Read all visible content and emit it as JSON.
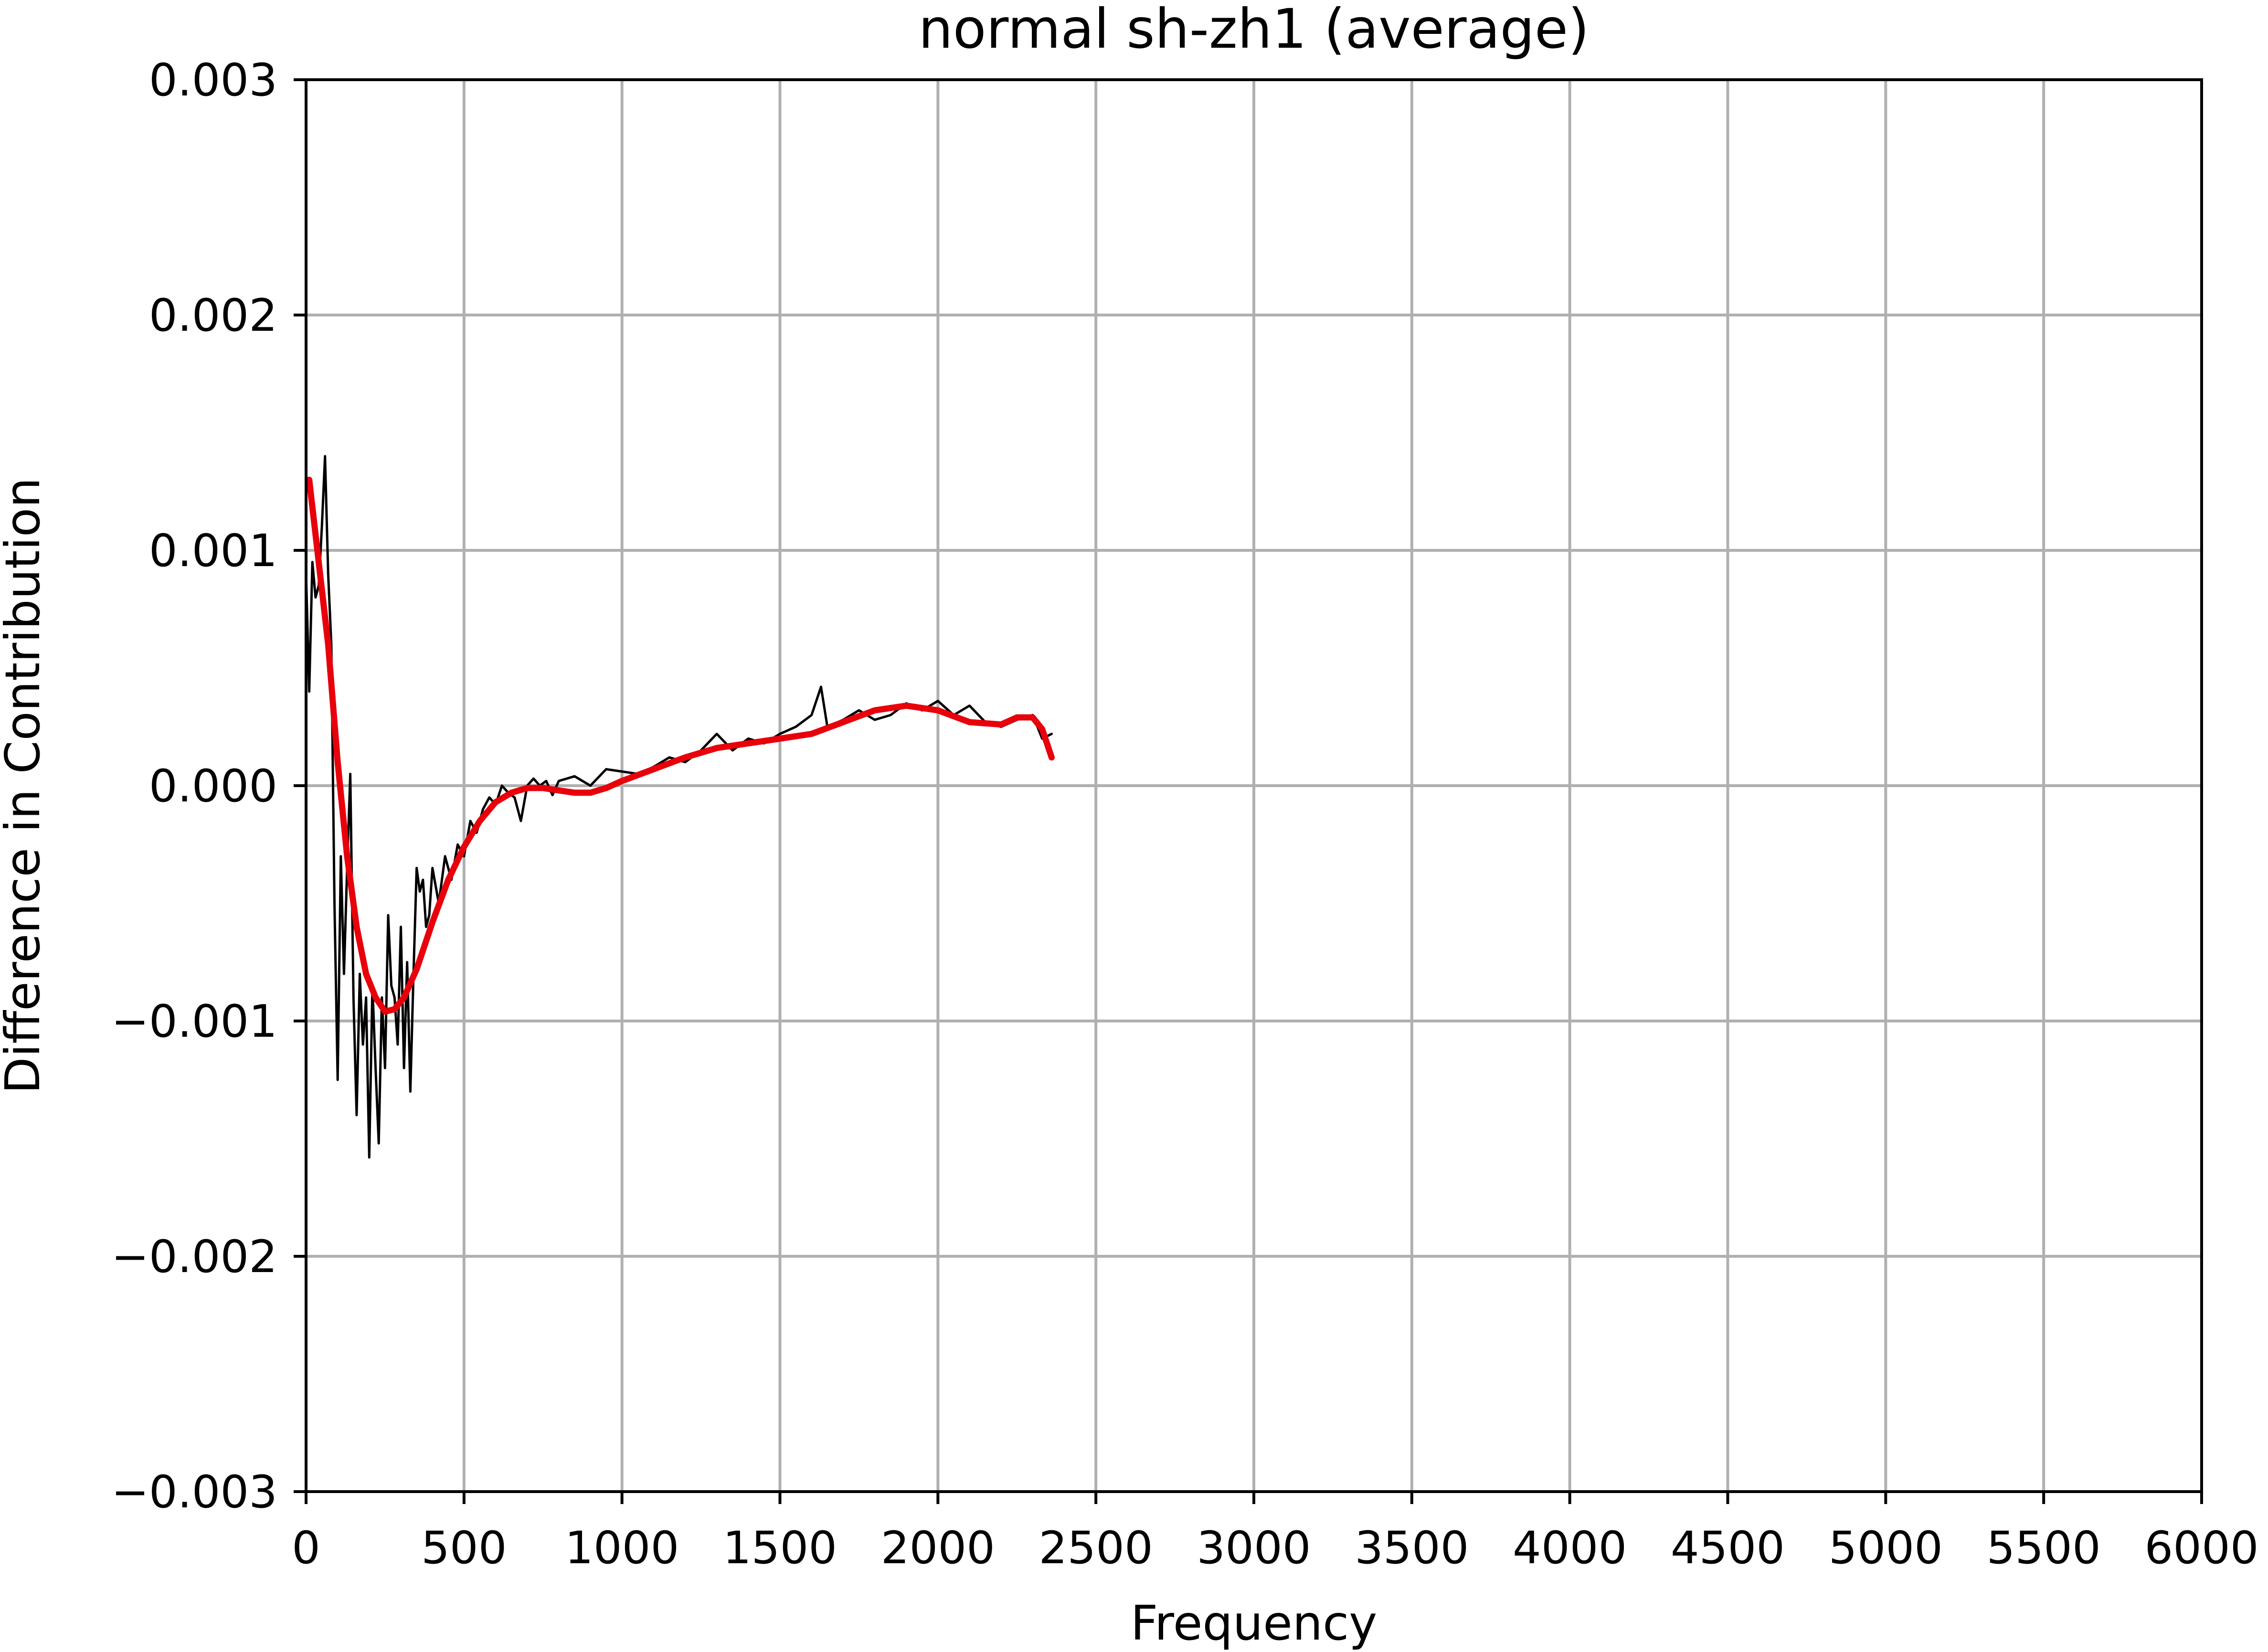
{
  "chart_data": {
    "type": "line",
    "title": "normal sh-zh1 (average)",
    "xlabel": "Frequency",
    "ylabel": "Difference in Contribution",
    "xlim": [
      0,
      6000
    ],
    "ylim": [
      -0.003,
      0.003
    ],
    "xticks": [
      0,
      500,
      1000,
      1500,
      2000,
      2500,
      3000,
      3500,
      4000,
      4500,
      5000,
      5500,
      6000
    ],
    "xtick_labels": [
      "0",
      "500",
      "1000",
      "1500",
      "2000",
      "2500",
      "3000",
      "3500",
      "4000",
      "4500",
      "5000",
      "5500",
      "6000"
    ],
    "yticks": [
      -0.003,
      -0.002,
      -0.001,
      0.0,
      0.001,
      0.002,
      0.003
    ],
    "ytick_labels": [
      "−0.003",
      "−0.002",
      "−0.001",
      "0.000",
      "0.001",
      "0.002",
      "0.003"
    ],
    "grid": true,
    "colors": {
      "raw": "#000000",
      "smooth": "#e8000b",
      "grid": "#b0b0b0"
    },
    "series": [
      {
        "style": "raw",
        "x": [
          0,
          10,
          20,
          30,
          40,
          50,
          60,
          70,
          80,
          90,
          100,
          110,
          120,
          130,
          140,
          150,
          160,
          170,
          180,
          190,
          200,
          210,
          220,
          230,
          240,
          250,
          260,
          270,
          280,
          290,
          300,
          310,
          320,
          330,
          340,
          350,
          360,
          370,
          380,
          390,
          400,
          420,
          440,
          460,
          480,
          500,
          520,
          540,
          560,
          580,
          600,
          620,
          640,
          660,
          680,
          700,
          720,
          740,
          760,
          780,
          800,
          850,
          900,
          950,
          1000,
          1050,
          1100,
          1150,
          1200,
          1250,
          1300,
          1350,
          1400,
          1450,
          1500,
          1550,
          1600,
          1630,
          1650,
          1700,
          1750,
          1800,
          1850,
          1900,
          1950,
          2000,
          2050,
          2100,
          2150,
          2200,
          2250,
          2300,
          2330,
          2360
        ],
        "y": [
          0.0009,
          0.0004,
          0.00095,
          0.0008,
          0.00085,
          0.0011,
          0.0014,
          0.0009,
          0.0006,
          -0.0005,
          -0.00125,
          -0.0003,
          -0.0008,
          -0.00035,
          5e-05,
          -0.0009,
          -0.0014,
          -0.0008,
          -0.0011,
          -0.0009,
          -0.00158,
          -0.00085,
          -0.0012,
          -0.00152,
          -0.0009,
          -0.0012,
          -0.00055,
          -0.00085,
          -0.0009,
          -0.0011,
          -0.0006,
          -0.0012,
          -0.00075,
          -0.0013,
          -0.0008,
          -0.00035,
          -0.00045,
          -0.0004,
          -0.0006,
          -0.00055,
          -0.00035,
          -0.0005,
          -0.0003,
          -0.0004,
          -0.00025,
          -0.0003,
          -0.00015,
          -0.0002,
          -0.0001,
          -5e-05,
          -8e-05,
          0.0,
          -3e-05,
          -5e-05,
          -0.00015,
          0.0,
          3e-05,
          0.0,
          2e-05,
          -4e-05,
          2e-05,
          4e-05,
          0.0,
          7e-05,
          6e-05,
          5e-05,
          8e-05,
          0.00012,
          0.0001,
          0.00015,
          0.00022,
          0.00015,
          0.0002,
          0.00018,
          0.00022,
          0.00025,
          0.0003,
          0.00042,
          0.00025,
          0.00028,
          0.00032,
          0.00028,
          0.0003,
          0.00035,
          0.00032,
          0.00036,
          0.0003,
          0.00034,
          0.00027,
          0.00025,
          0.00028,
          0.0003,
          0.0002,
          0.00022
        ]
      },
      {
        "style": "smooth",
        "x": [
          10,
          40,
          70,
          100,
          130,
          160,
          190,
          220,
          250,
          280,
          310,
          350,
          400,
          450,
          500,
          550,
          600,
          650,
          700,
          750,
          800,
          850,
          900,
          950,
          1000,
          1100,
          1200,
          1300,
          1400,
          1500,
          1600,
          1700,
          1800,
          1900,
          2000,
          2100,
          2200,
          2250,
          2300,
          2330,
          2360
        ],
        "y": [
          0.0013,
          0.00095,
          0.0006,
          0.0001,
          -0.0003,
          -0.0006,
          -0.0008,
          -0.0009,
          -0.00096,
          -0.00095,
          -0.0009,
          -0.00078,
          -0.00058,
          -0.0004,
          -0.00026,
          -0.00015,
          -7e-05,
          -3e-05,
          -1e-05,
          -1e-05,
          -2e-05,
          -3e-05,
          -3e-05,
          -1e-05,
          2e-05,
          7e-05,
          0.00012,
          0.00016,
          0.00018,
          0.0002,
          0.00022,
          0.00027,
          0.00032,
          0.00034,
          0.00032,
          0.00027,
          0.00026,
          0.00029,
          0.00029,
          0.00024,
          0.00012
        ]
      }
    ]
  }
}
